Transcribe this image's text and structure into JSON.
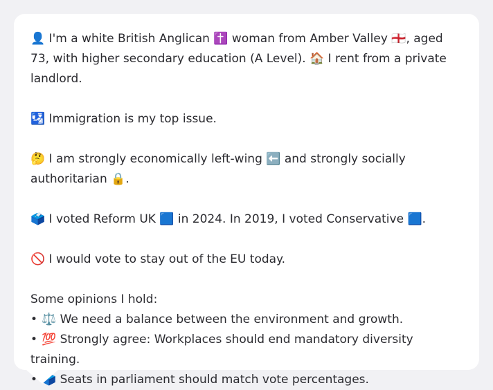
{
  "profile": {
    "line1": "👤 I'm a white British Anglican ✝️ woman from Amber Valley 🏴󠁧󠁢󠁥󠁮󠁧󠁿, aged 73, with higher secondary education (A Level). 🏠 I rent from a private landlord.",
    "line2": "🛂 Immigration is my top issue.",
    "line3": "🤔 I am strongly economically left-wing ⬅️ and strongly socially authoritarian 🔒.",
    "line4": "🗳️ I voted Reform UK 🟦 in 2024. In 2019, I voted Conservative 🟦.",
    "line5": "🚫 I would vote to stay out of the EU today.",
    "opinions_heading": "Some opinions I hold:",
    "opinions": [
      "⚖️ We need a balance between the environment and growth.",
      "💯 Strongly agree: Workplaces should end mandatory diversity training.",
      "🗳️ Seats in parliament should match vote percentages."
    ]
  }
}
